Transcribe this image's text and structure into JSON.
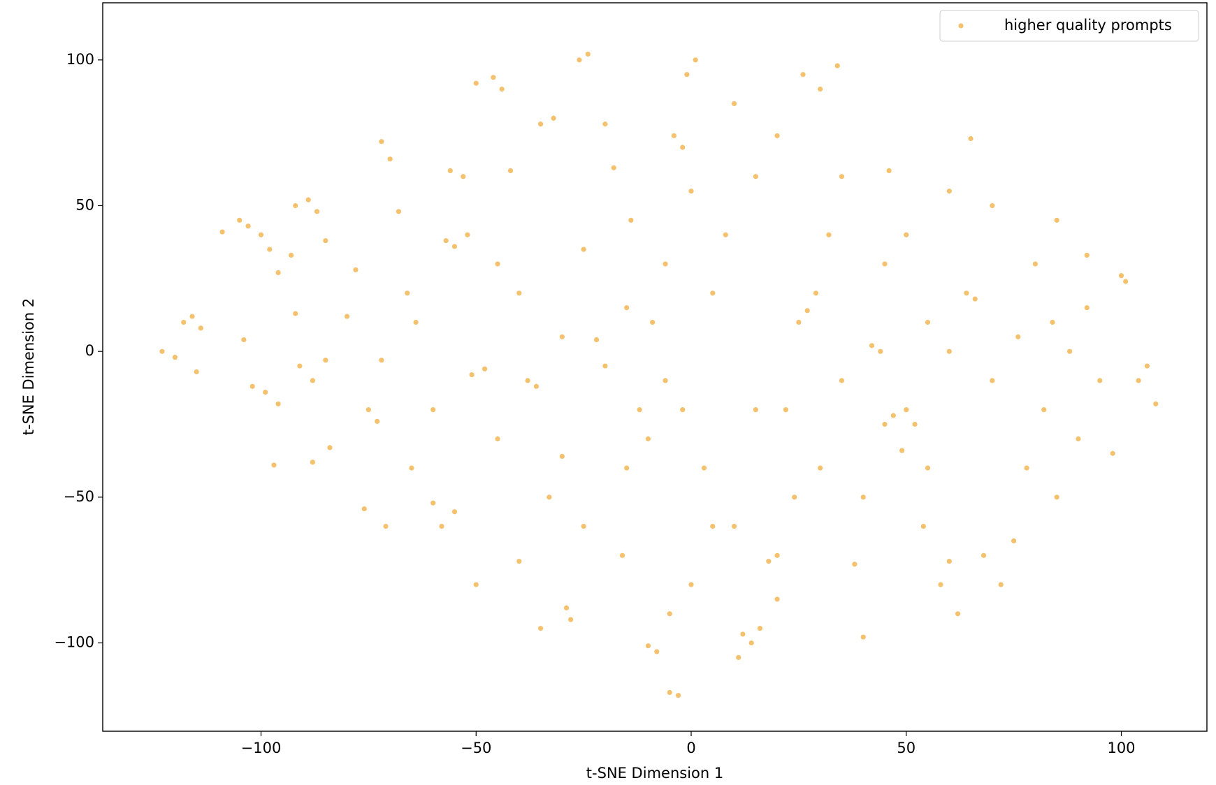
{
  "chart_data": {
    "type": "scatter",
    "xlabel": "t-SNE Dimension 1",
    "ylabel": "t-SNE Dimension 2",
    "xlim": [
      -136.8,
      119.9
    ],
    "ylim": [
      -130.3,
      119.6
    ],
    "xticks": [
      {
        "value": -100,
        "label": "−100"
      },
      {
        "value": -50,
        "label": "−50"
      },
      0,
      50,
      100
    ],
    "yticks": [
      {
        "value": -100,
        "label": "−100"
      },
      {
        "value": -50,
        "label": "−50"
      },
      0,
      50,
      100
    ],
    "legend": "upper right",
    "series": [
      {
        "name": "higher quality prompts",
        "color": "#f0a830",
        "x": [
          -123,
          -120,
          -118,
          -116,
          -114,
          -115,
          -109,
          -105,
          -103,
          -100,
          -98,
          -96,
          -93,
          -92,
          -89,
          -87,
          -85,
          -104,
          -102,
          -99,
          -96,
          -92,
          -91,
          -88,
          -85,
          -97,
          -88,
          -84,
          -80,
          -78,
          -75,
          -73,
          -72,
          -76,
          -71,
          -70,
          -72,
          -68,
          -66,
          -64,
          -60,
          -58,
          -55,
          -57,
          -55,
          -52,
          -56,
          -53,
          -51,
          -48,
          -50,
          -46,
          -44,
          -45,
          -42,
          -40,
          -38,
          -36,
          -35,
          -32,
          -30,
          -29,
          -28,
          -26,
          -24,
          -22,
          -20,
          -18,
          -16,
          -14,
          -12,
          -10,
          -8,
          -5,
          -3,
          -4,
          -2,
          -1,
          1,
          -6,
          -9,
          -15,
          -25,
          -33,
          -40,
          -30,
          -20,
          -10,
          -6,
          -2,
          3,
          5,
          8,
          10,
          12,
          14,
          16,
          11,
          18,
          20,
          15,
          20,
          22,
          25,
          27,
          29,
          24,
          26,
          30,
          34,
          32,
          35,
          38,
          40,
          42,
          44,
          45,
          47,
          50,
          52,
          49,
          46,
          50,
          54,
          55,
          58,
          60,
          62,
          64,
          66,
          65,
          68,
          70,
          72,
          75,
          78,
          80,
          82,
          85,
          88,
          90,
          92,
          95,
          100,
          101,
          104,
          106,
          108,
          98,
          84,
          76,
          70,
          60,
          55,
          40,
          30,
          15,
          5,
          0,
          -5,
          20,
          35,
          10,
          0,
          -15,
          -25,
          -45,
          -60,
          -65,
          -50,
          -35,
          45,
          60,
          85,
          92
        ],
        "values": [
          0,
          -2,
          10,
          12,
          8,
          -7,
          41,
          45,
          43,
          40,
          35,
          27,
          33,
          50,
          52,
          48,
          38,
          4,
          -12,
          -14,
          -18,
          13,
          -5,
          -10,
          -3,
          -39,
          -38,
          -33,
          12,
          28,
          -20,
          -24,
          -3,
          -54,
          -60,
          66,
          72,
          48,
          20,
          10,
          -52,
          -60,
          -55,
          38,
          36,
          40,
          62,
          60,
          -8,
          -6,
          92,
          94,
          90,
          30,
          62,
          -72,
          -10,
          -12,
          78,
          80,
          -36,
          -88,
          -92,
          100,
          102,
          4,
          78,
          63,
          -70,
          45,
          -20,
          -101,
          -103,
          -117,
          -118,
          74,
          70,
          95,
          100,
          30,
          10,
          -40,
          -60,
          -50,
          20,
          5,
          -5,
          -30,
          -10,
          -20,
          -40,
          20,
          40,
          -60,
          -97,
          -100,
          -95,
          -105,
          -72,
          -70,
          60,
          74,
          -20,
          10,
          14,
          20,
          -50,
          95,
          90,
          98,
          40,
          -10,
          -73,
          -98,
          2,
          0,
          -25,
          -22,
          -20,
          -25,
          -34,
          62,
          40,
          -60,
          10,
          -80,
          -72,
          -90,
          20,
          18,
          73,
          -70,
          50,
          -80,
          -65,
          -40,
          30,
          -20,
          -50,
          0,
          -30,
          15,
          -10,
          26,
          24,
          -10,
          -5,
          -18,
          -35,
          10,
          5,
          -10,
          0,
          -40,
          -50,
          -40,
          -20,
          -60,
          -80,
          -90,
          -85,
          60,
          85,
          55,
          15,
          35,
          -30,
          -20,
          -40,
          -80,
          -95,
          30,
          55,
          45,
          33
        ]
      }
    ]
  }
}
